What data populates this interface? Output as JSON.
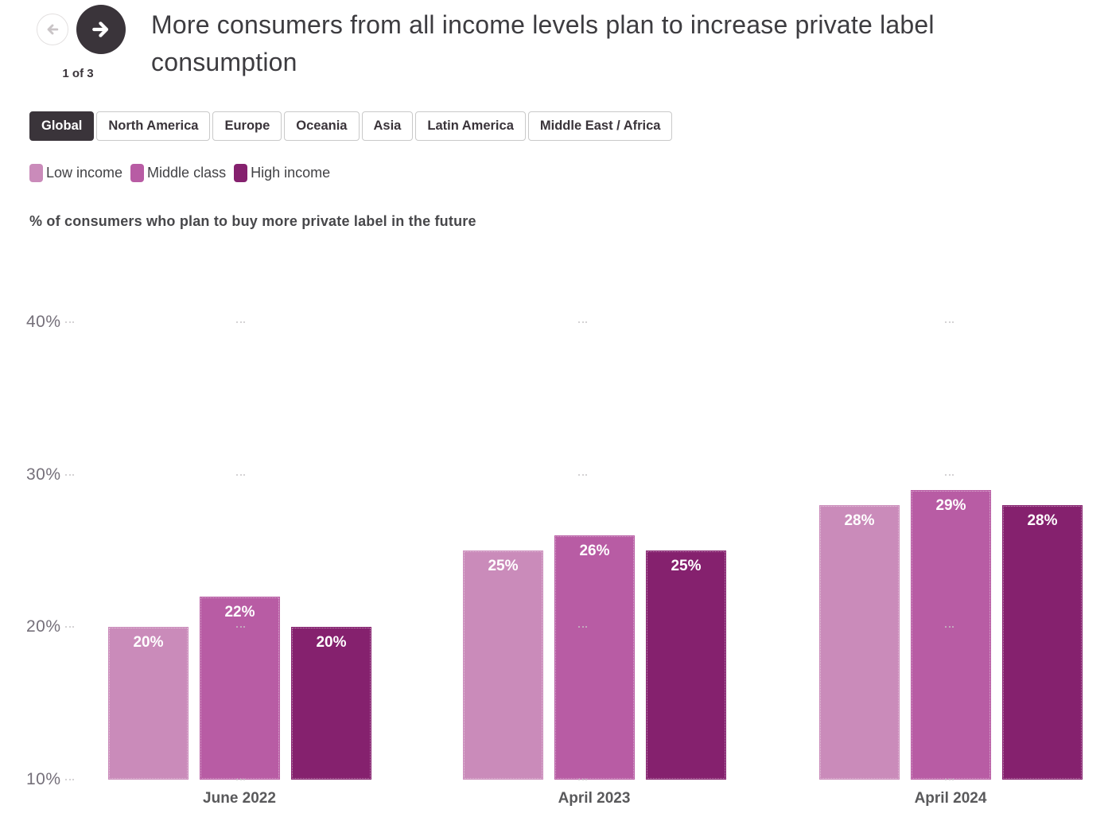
{
  "nav": {
    "position_label": "1 of 3"
  },
  "title": "More consumers from all income levels plan to increase private label consumption",
  "tabs": {
    "items": [
      {
        "label": "Global",
        "active": true
      },
      {
        "label": "North America",
        "active": false
      },
      {
        "label": "Europe",
        "active": false
      },
      {
        "label": "Oceania",
        "active": false
      },
      {
        "label": "Asia",
        "active": false
      },
      {
        "label": "Latin America",
        "active": false
      },
      {
        "label": "Middle East / Africa",
        "active": false
      }
    ]
  },
  "subtitle": "% of consumers who plan to buy more private label in the future",
  "colors": {
    "accent_dark": "#3a343a",
    "low_income": "#ca8bba",
    "middle_class": "#b85ca4",
    "high_income": "#85216e"
  },
  "chart_data": {
    "type": "bar",
    "title": "% of consumers who plan to buy more private label in the future",
    "categories": [
      "June 2022",
      "April 2023",
      "April 2024"
    ],
    "series": [
      {
        "name": "Low income",
        "color": "#ca8bba",
        "values": [
          20,
          25,
          28
        ]
      },
      {
        "name": "Middle class",
        "color": "#b85ca4",
        "values": [
          22,
          26,
          29
        ]
      },
      {
        "name": "High income",
        "color": "#85216e",
        "values": [
          20,
          25,
          28
        ]
      }
    ],
    "value_suffix": "%",
    "y_ticks": [
      40,
      30,
      20,
      10
    ],
    "ylim": [
      10,
      40
    ],
    "grid": "dotted-sparse",
    "legend_position": "top-left",
    "bar_labels": "inside-top"
  }
}
